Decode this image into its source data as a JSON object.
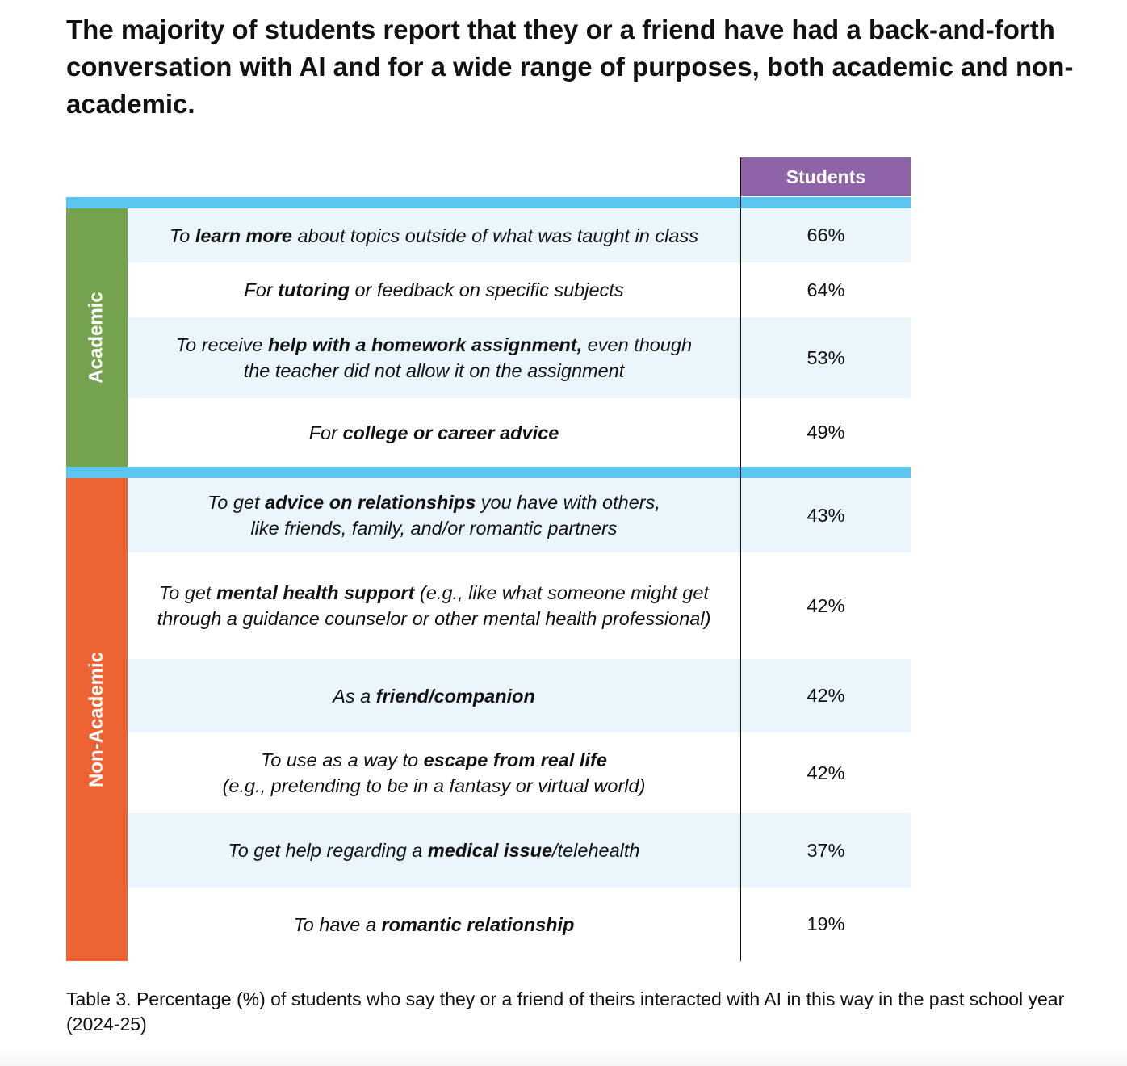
{
  "title": "The majority of students report that they or a friend have had a back-and-forth conversation with AI and for a wide range of purposes, both academic and non-academic.",
  "caption": "Table 3. Percentage (%) of students who say they or a friend of theirs interacted with AI in this way in the past school year (2024-25)",
  "colors": {
    "header": "#8e63a8",
    "accent_bar": "#5bc5ef",
    "academic": "#74a24f",
    "non_academic": "#ee6334",
    "row_tint": "#eaf5fc"
  },
  "chart_data": {
    "type": "table",
    "title": "The majority of students report that they or a friend have had a back-and-forth conversation with AI and for a wide range of purposes, both academic and non-academic.",
    "columns": [
      "Students"
    ],
    "groups": [
      {
        "name": "Academic",
        "rows": [
          {
            "parts": [
              {
                "t": "To ",
                "b": false
              },
              {
                "t": "learn more",
                "b": true
              },
              {
                "t": " about topics outside of what was taught in class",
                "b": false
              }
            ],
            "value": "66%"
          },
          {
            "parts": [
              {
                "t": "For ",
                "b": false
              },
              {
                "t": "tutoring",
                "b": true
              },
              {
                "t": " or feedback on specific subjects",
                "b": false
              }
            ],
            "value": "64%"
          },
          {
            "parts": [
              {
                "t": "To receive ",
                "b": false
              },
              {
                "t": "help with a homework assignment,",
                "b": true
              },
              {
                "t": " even though the teacher did not allow it on the assignment",
                "b": false
              }
            ],
            "value": "53%"
          },
          {
            "parts": [
              {
                "t": "For ",
                "b": false
              },
              {
                "t": "college or career advice",
                "b": true
              }
            ],
            "value": "49%"
          }
        ]
      },
      {
        "name": "Non-Academic",
        "rows": [
          {
            "parts": [
              {
                "t": "To get ",
                "b": false
              },
              {
                "t": "advice on relationships",
                "b": true
              },
              {
                "t": " you have with others, like friends, family, and/or romantic partners",
                "b": false
              }
            ],
            "value": "43%"
          },
          {
            "parts": [
              {
                "t": "To get ",
                "b": false
              },
              {
                "t": "mental health support",
                "b": true
              },
              {
                "t": " (e.g., like what someone might get through a guidance counselor or other mental health professional)",
                "b": false
              }
            ],
            "value": "42%"
          },
          {
            "parts": [
              {
                "t": "As a ",
                "b": false
              },
              {
                "t": "friend/companion",
                "b": true
              }
            ],
            "value": "42%"
          },
          {
            "parts": [
              {
                "t": "To use as a way to ",
                "b": false
              },
              {
                "t": "escape from real life",
                "b": true
              },
              {
                "t": " (e.g., pretending to be in a fantasy or virtual world)",
                "b": false
              }
            ],
            "value": "42%"
          },
          {
            "parts": [
              {
                "t": "To get help regarding a ",
                "b": false
              },
              {
                "t": "medical issue",
                "b": true
              },
              {
                "t": "/telehealth",
                "b": false
              }
            ],
            "value": "37%"
          },
          {
            "parts": [
              {
                "t": "To have a ",
                "b": false
              },
              {
                "t": "romantic relationship",
                "b": true
              }
            ],
            "value": "19%"
          }
        ]
      }
    ]
  }
}
